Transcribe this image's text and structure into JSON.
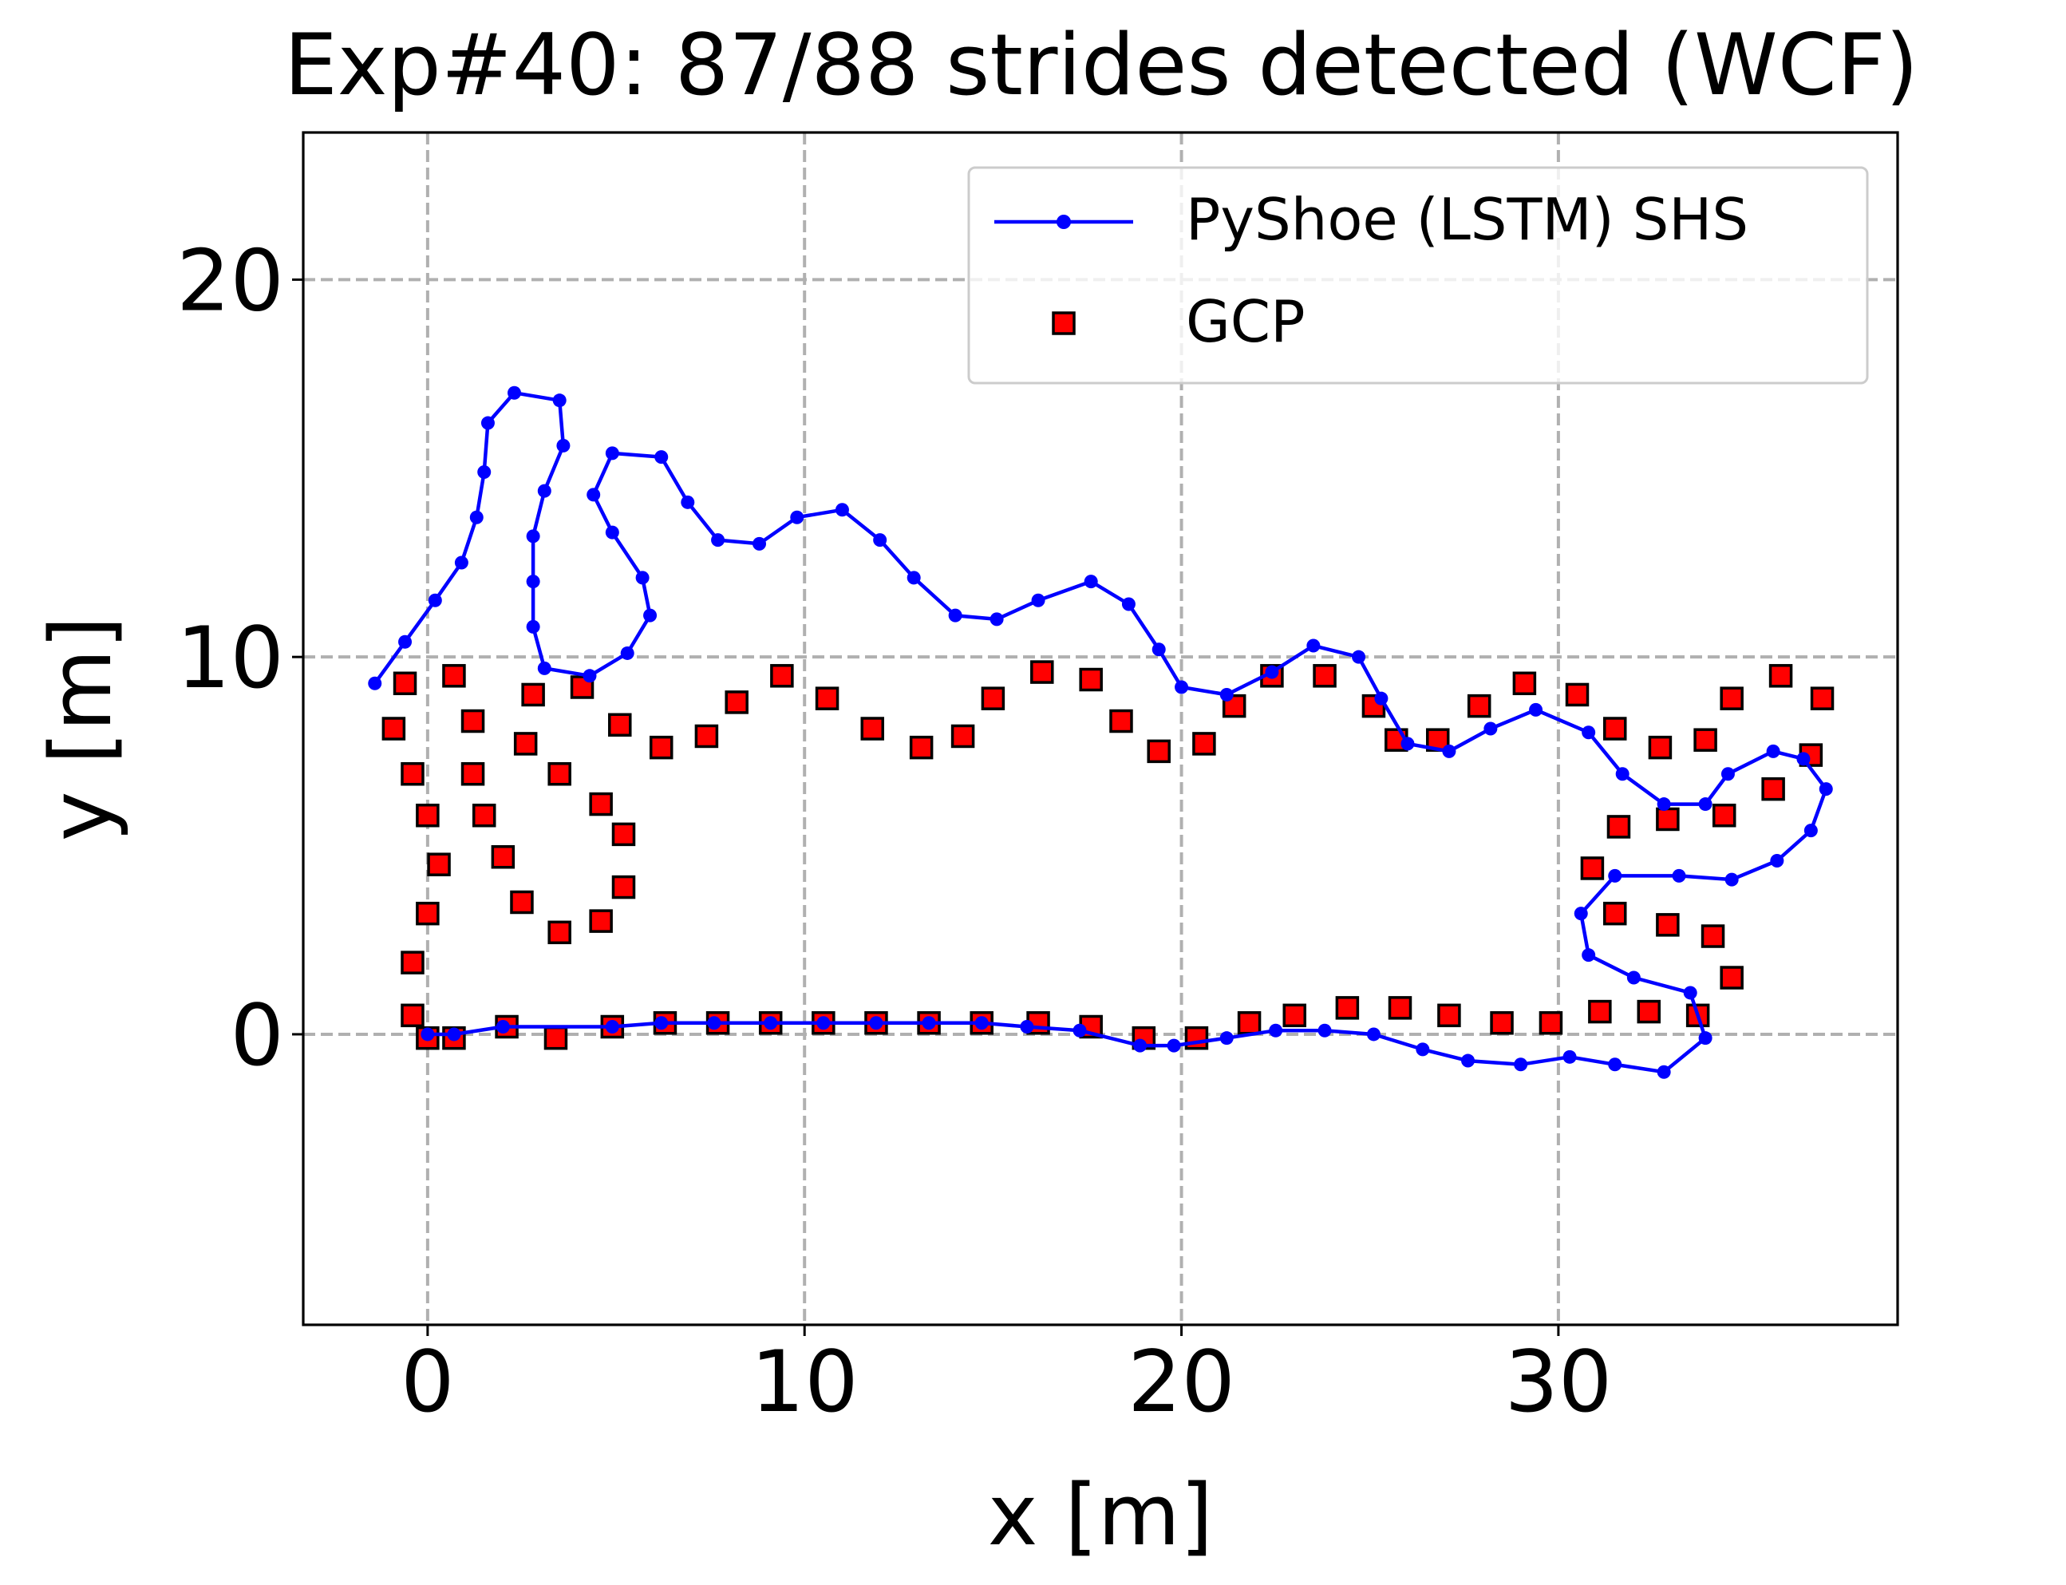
{
  "chart_data": {
    "type": "scatter",
    "title": "Exp#40: 87/88 strides detected (WCF)",
    "xlabel": "x [m]",
    "ylabel": "y [m]",
    "xlim": [
      -3.3,
      39.0
    ],
    "ylim": [
      -7.7,
      23.9
    ],
    "xticks": [
      0,
      10,
      20,
      30
    ],
    "yticks": [
      0,
      10,
      20
    ],
    "grid": true,
    "legend_position": "top-right",
    "series": [
      {
        "name": "PyShoe (LSTM) SHS",
        "style": "line-dot",
        "color": "#0000ff",
        "points": [
          [
            0,
            0
          ],
          [
            0.7,
            0
          ],
          [
            2.0,
            0.2
          ],
          [
            4.9,
            0.2
          ],
          [
            6.2,
            0.3
          ],
          [
            7.6,
            0.3
          ],
          [
            9.1,
            0.3
          ],
          [
            10.5,
            0.3
          ],
          [
            11.9,
            0.3
          ],
          [
            13.3,
            0.3
          ],
          [
            14.7,
            0.3
          ],
          [
            15.9,
            0.2
          ],
          [
            17.3,
            0.1
          ],
          [
            18.9,
            -0.3
          ],
          [
            19.8,
            -0.3
          ],
          [
            21.2,
            -0.1
          ],
          [
            22.5,
            0.1
          ],
          [
            23.8,
            0.1
          ],
          [
            25.1,
            0
          ],
          [
            26.4,
            -0.4
          ],
          [
            27.6,
            -0.7
          ],
          [
            29.0,
            -0.8
          ],
          [
            30.3,
            -0.6
          ],
          [
            31.5,
            -0.8
          ],
          [
            32.8,
            -1.0
          ],
          [
            33.9,
            -0.1
          ],
          [
            33.5,
            1.1
          ],
          [
            32.0,
            1.5
          ],
          [
            30.8,
            2.1
          ],
          [
            30.6,
            3.2
          ],
          [
            31.5,
            4.2
          ],
          [
            33.2,
            4.2
          ],
          [
            34.6,
            4.1
          ],
          [
            35.8,
            4.6
          ],
          [
            36.7,
            5.4
          ],
          [
            37.1,
            6.5
          ],
          [
            36.5,
            7.3
          ],
          [
            35.7,
            7.5
          ],
          [
            34.5,
            6.9
          ],
          [
            33.9,
            6.1
          ],
          [
            32.8,
            6.1
          ],
          [
            31.7,
            6.9
          ],
          [
            30.8,
            8.0
          ],
          [
            29.4,
            8.6
          ],
          [
            28.2,
            8.1
          ],
          [
            27.1,
            7.5
          ],
          [
            26.0,
            7.7
          ],
          [
            25.3,
            8.9
          ],
          [
            24.7,
            10.0
          ],
          [
            23.5,
            10.3
          ],
          [
            22.4,
            9.6
          ],
          [
            21.2,
            9.0
          ],
          [
            20.0,
            9.2
          ],
          [
            19.4,
            10.2
          ],
          [
            18.6,
            11.4
          ],
          [
            17.6,
            12.0
          ],
          [
            16.2,
            11.5
          ],
          [
            15.1,
            11.0
          ],
          [
            14.0,
            11.1
          ],
          [
            12.9,
            12.1
          ],
          [
            12.0,
            13.1
          ],
          [
            11.0,
            13.9
          ],
          [
            9.8,
            13.7
          ],
          [
            8.8,
            13.0
          ],
          [
            7.7,
            13.1
          ],
          [
            6.9,
            14.1
          ],
          [
            6.2,
            15.3
          ],
          [
            4.9,
            15.4
          ],
          [
            4.4,
            14.3
          ],
          [
            4.9,
            13.3
          ],
          [
            5.7,
            12.1
          ],
          [
            5.9,
            11.1
          ],
          [
            5.3,
            10.1
          ],
          [
            4.3,
            9.5
          ],
          [
            3.1,
            9.7
          ],
          [
            2.8,
            10.8
          ],
          [
            2.8,
            12.0
          ],
          [
            2.8,
            13.2
          ],
          [
            3.1,
            14.4
          ],
          [
            3.6,
            15.6
          ],
          [
            3.5,
            16.8
          ],
          [
            2.3,
            17.0
          ],
          [
            1.6,
            16.2
          ],
          [
            1.5,
            14.9
          ],
          [
            1.3,
            13.7
          ],
          [
            0.9,
            12.5
          ],
          [
            0.2,
            11.5
          ],
          [
            -0.6,
            10.4
          ],
          [
            -1.4,
            9.3
          ]
        ]
      },
      {
        "name": "GCP",
        "style": "square",
        "color": "#ff0000",
        "edge_color": "#000000",
        "points": [
          [
            -0.4,
            0.5
          ],
          [
            0,
            -0.1
          ],
          [
            0.7,
            -0.1
          ],
          [
            2.1,
            0.2
          ],
          [
            3.4,
            -0.1
          ],
          [
            4.9,
            0.2
          ],
          [
            6.3,
            0.3
          ],
          [
            7.7,
            0.3
          ],
          [
            9.1,
            0.3
          ],
          [
            10.5,
            0.3
          ],
          [
            11.9,
            0.3
          ],
          [
            13.3,
            0.3
          ],
          [
            14.7,
            0.3
          ],
          [
            16.2,
            0.3
          ],
          [
            17.6,
            0.2
          ],
          [
            19.0,
            -0.1
          ],
          [
            20.4,
            -0.1
          ],
          [
            21.8,
            0.3
          ],
          [
            23.0,
            0.5
          ],
          [
            24.4,
            0.7
          ],
          [
            25.8,
            0.7
          ],
          [
            27.1,
            0.5
          ],
          [
            28.5,
            0.3
          ],
          [
            29.8,
            0.3
          ],
          [
            31.1,
            0.6
          ],
          [
            32.4,
            0.6
          ],
          [
            33.7,
            0.5
          ],
          [
            34.6,
            1.5
          ],
          [
            34.1,
            2.6
          ],
          [
            32.9,
            2.9
          ],
          [
            31.5,
            3.2
          ],
          [
            30.9,
            4.4
          ],
          [
            31.6,
            5.5
          ],
          [
            32.9,
            5.7
          ],
          [
            34.4,
            5.8
          ],
          [
            35.7,
            6.5
          ],
          [
            36.7,
            7.4
          ],
          [
            37.0,
            8.9
          ],
          [
            35.9,
            9.5
          ],
          [
            34.6,
            8.9
          ],
          [
            33.9,
            7.8
          ],
          [
            32.7,
            7.6
          ],
          [
            31.5,
            8.1
          ],
          [
            30.5,
            9.0
          ],
          [
            29.1,
            9.3
          ],
          [
            27.9,
            8.7
          ],
          [
            26.8,
            7.8
          ],
          [
            25.7,
            7.8
          ],
          [
            25.1,
            8.7
          ],
          [
            23.8,
            9.5
          ],
          [
            22.4,
            9.5
          ],
          [
            21.4,
            8.7
          ],
          [
            20.6,
            7.7
          ],
          [
            19.4,
            7.5
          ],
          [
            18.4,
            8.3
          ],
          [
            17.6,
            9.4
          ],
          [
            16.3,
            9.6
          ],
          [
            15.0,
            8.9
          ],
          [
            14.2,
            7.9
          ],
          [
            13.1,
            7.6
          ],
          [
            11.8,
            8.1
          ],
          [
            10.6,
            8.9
          ],
          [
            9.4,
            9.5
          ],
          [
            8.2,
            8.8
          ],
          [
            7.4,
            7.9
          ],
          [
            6.2,
            7.6
          ],
          [
            5.1,
            8.2
          ],
          [
            4.1,
            9.2
          ],
          [
            2.8,
            9.0
          ],
          [
            2.6,
            7.7
          ],
          [
            3.5,
            6.9
          ],
          [
            4.6,
            6.1
          ],
          [
            5.2,
            5.3
          ],
          [
            5.2,
            3.9
          ],
          [
            4.6,
            3.0
          ],
          [
            3.5,
            2.7
          ],
          [
            2.5,
            3.5
          ],
          [
            2.0,
            4.7
          ],
          [
            1.5,
            5.8
          ],
          [
            1.2,
            6.9
          ],
          [
            1.2,
            8.3
          ],
          [
            0.7,
            9.5
          ],
          [
            -0.6,
            9.3
          ],
          [
            -0.9,
            8.1
          ],
          [
            -0.4,
            6.9
          ],
          [
            0,
            5.8
          ],
          [
            0.3,
            4.5
          ],
          [
            0,
            3.2
          ],
          [
            -0.4,
            1.9
          ]
        ]
      }
    ]
  }
}
